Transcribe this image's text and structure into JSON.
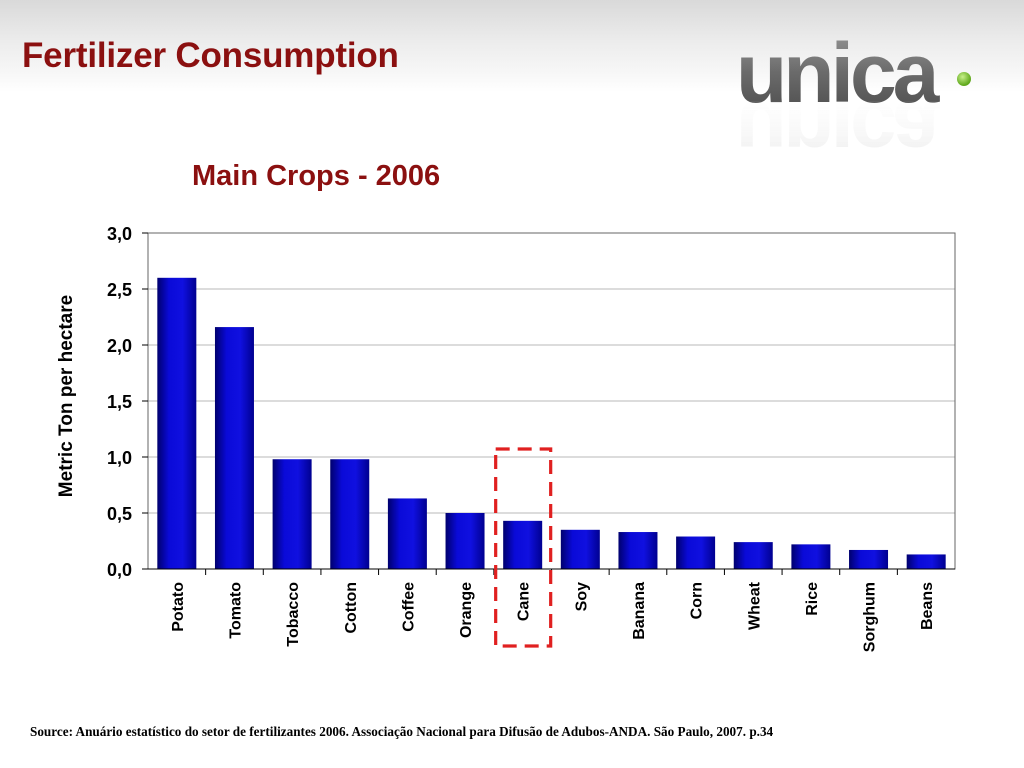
{
  "slide": {
    "title": "Fertilizer Consumption",
    "source": "Source: Anuário estatístico do setor de fertilizantes 2006. Associação Nacional para Difusão de Adubos-ANDA. São Paulo, 2007. p.34"
  },
  "logo": {
    "text": "unica",
    "icon": "unica-logo"
  },
  "colors": {
    "title": "#8b1010",
    "bar": "#0a0ac8",
    "bar_dark": "#000080",
    "highlight_box": "#e02020"
  },
  "chart_data": {
    "type": "bar",
    "title": "Main Crops - 2006",
    "xlabel": "",
    "ylabel": "Metric Ton per hectare",
    "categories": [
      "Potato",
      "Tomato",
      "Tobacco",
      "Cotton",
      "Coffee",
      "Orange",
      "Cane",
      "Soy",
      "Banana",
      "Corn",
      "Wheat",
      "Rice",
      "Sorghum",
      "Beans"
    ],
    "values": [
      2.6,
      2.16,
      0.98,
      0.98,
      0.63,
      0.5,
      0.43,
      0.35,
      0.33,
      0.29,
      0.24,
      0.22,
      0.17,
      0.13
    ],
    "ylim": [
      0,
      3
    ],
    "yticks": [
      "0,0",
      "0,5",
      "1,0",
      "1,5",
      "2,0",
      "2,5",
      "3,0"
    ],
    "grid": true,
    "highlighted_category": "Cane"
  }
}
